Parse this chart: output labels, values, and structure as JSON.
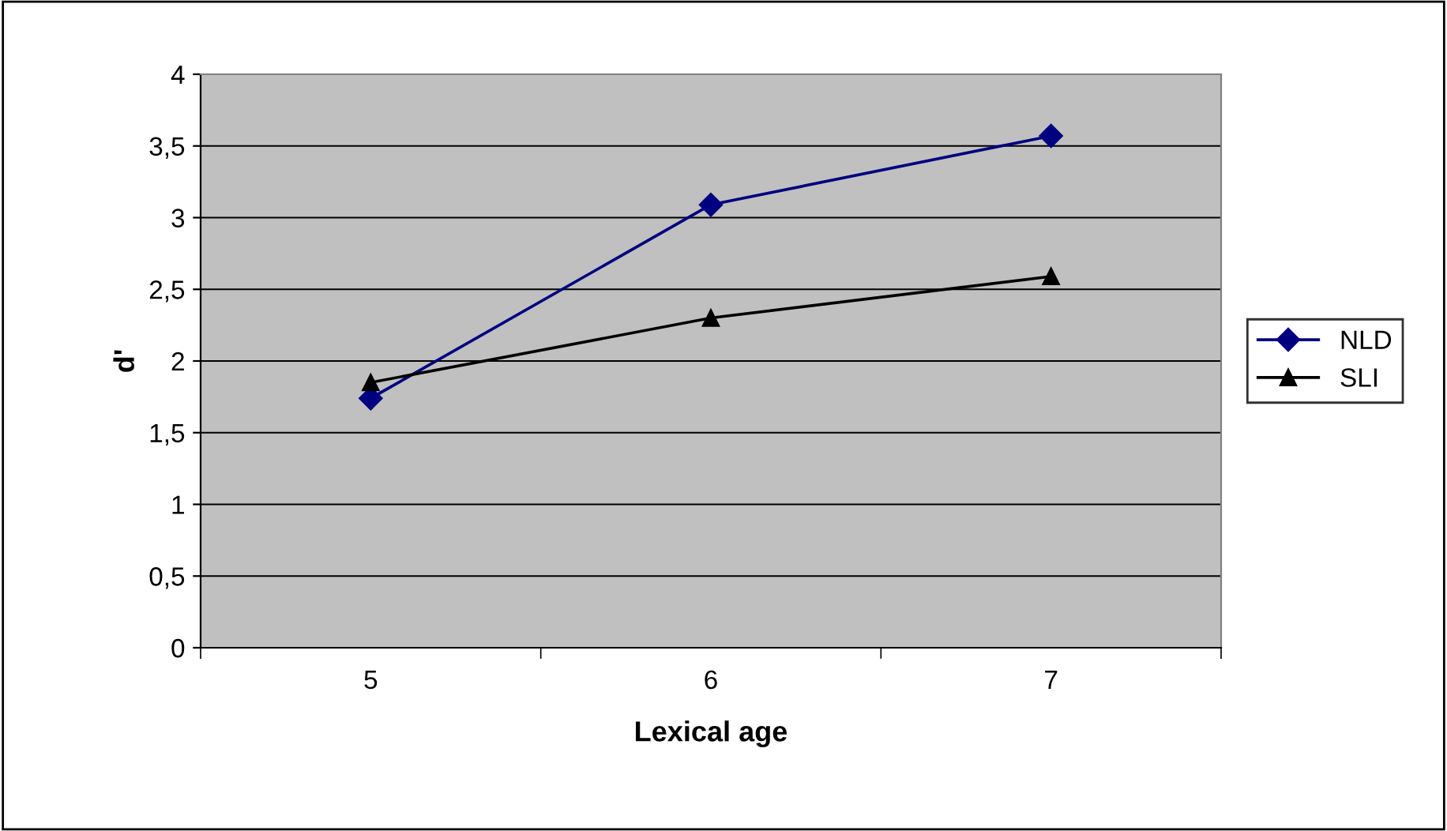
{
  "chart_data": {
    "type": "line",
    "xlabel": "Lexical age",
    "ylabel": "d'",
    "categories": [
      "5",
      "6",
      "7"
    ],
    "series": [
      {
        "name": "NLD",
        "color": "#000080",
        "marker": "diamond",
        "values": [
          1.74,
          3.09,
          3.57
        ]
      },
      {
        "name": "SLI",
        "color": "#000000",
        "marker": "triangle",
        "values": [
          1.85,
          2.3,
          2.59
        ]
      }
    ],
    "ylim": [
      0,
      4
    ],
    "yticks": [
      0,
      {
        "value": 0.5,
        "label": "0,5"
      },
      1,
      {
        "value": 1.5,
        "label": "1,5"
      },
      2,
      {
        "value": 2.5,
        "label": "2,5"
      },
      3,
      {
        "value": 3.5,
        "label": "3,5"
      },
      4
    ],
    "grid": "y",
    "legend": "right",
    "line_style": "solid"
  }
}
